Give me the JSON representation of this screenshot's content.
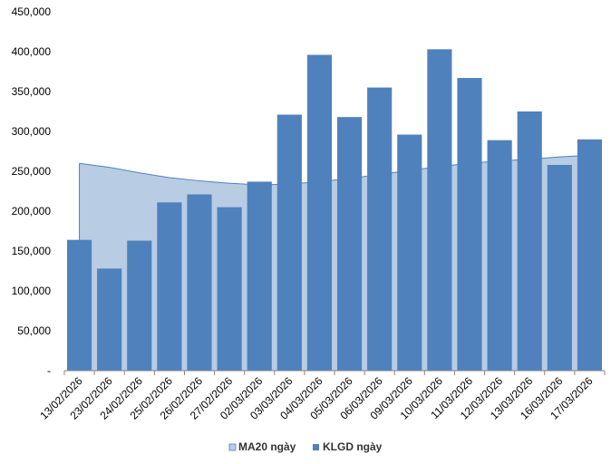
{
  "chart_data": {
    "type": "bar",
    "categories": [
      "13/02/2026",
      "23/02/2026",
      "24/02/2026",
      "25/02/2026",
      "26/02/2026",
      "27/02/2026",
      "02/03/2026",
      "03/03/2026",
      "04/03/2026",
      "05/03/2026",
      "06/03/2026",
      "09/03/2026",
      "10/03/2026",
      "11/03/2026",
      "12/03/2026",
      "13/03/2026",
      "16/03/2026",
      "17/03/2026"
    ],
    "series": [
      {
        "name": "MA20 ngày",
        "type": "area",
        "color": "#b8cce4",
        "line_color": "#4f81bd",
        "values": [
          260000,
          255000,
          248000,
          242000,
          238000,
          235000,
          233000,
          234000,
          237000,
          241000,
          246000,
          251000,
          256000,
          260000,
          263000,
          265000,
          268000,
          270000
        ]
      },
      {
        "name": "KLGD ngày",
        "type": "bar",
        "color": "#4f81bd",
        "values": [
          164000,
          128000,
          163000,
          211000,
          221000,
          205000,
          237000,
          321000,
          396000,
          318000,
          355000,
          296000,
          403000,
          367000,
          289000,
          325000,
          258000,
          290000
        ]
      }
    ],
    "y_ticks": [
      "-",
      "50,000",
      "100,000",
      "150,000",
      "200,000",
      "250,000",
      "300,000",
      "350,000",
      "400,000",
      "450,000"
    ],
    "ylim": [
      0,
      450000
    ],
    "legend_position": "bottom",
    "title": "",
    "xlabel": "",
    "ylabel": ""
  }
}
